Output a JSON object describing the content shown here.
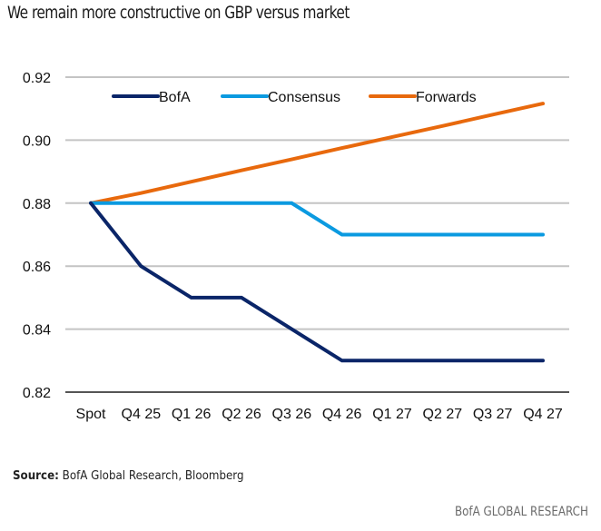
{
  "header": {
    "title": "We remain more constructive on GBP versus market"
  },
  "footer": {
    "source_label": "Source:",
    "source_text": " BofA Global Research, Bloomberg",
    "brand": "BofA GLOBAL RESEARCH"
  },
  "chart_data": {
    "type": "line",
    "title": "We remain more constructive on GBP versus market",
    "xlabel": "",
    "ylabel": "",
    "categories": [
      "Spot",
      "Q4 25",
      "Q1 26",
      "Q2 26",
      "Q3 26",
      "Q4 26",
      "Q1 27",
      "Q2 27",
      "Q3 27",
      "Q4 27"
    ],
    "ylim": [
      0.82,
      0.92
    ],
    "yticks": [
      0.82,
      0.84,
      0.86,
      0.88,
      0.9,
      0.92
    ],
    "ytick_labels": [
      "0.82",
      "0.84",
      "0.86",
      "0.88",
      "0.90",
      "0.92"
    ],
    "grid": true,
    "legend_position": "top",
    "series": [
      {
        "name": "BofA",
        "color": "#0a2568",
        "values": [
          0.88,
          0.86,
          0.85,
          0.85,
          0.84,
          0.83,
          0.83,
          0.83,
          0.83,
          0.83
        ]
      },
      {
        "name": "Consensus",
        "color": "#0b9ae0",
        "values": [
          0.88,
          0.88,
          0.88,
          0.88,
          0.88,
          0.87,
          0.87,
          0.87,
          0.87,
          0.87
        ]
      },
      {
        "name": "Forwards",
        "color": "#e8690d",
        "values": [
          0.88,
          0.8832,
          0.8868,
          0.8904,
          0.8939,
          0.8975,
          0.901,
          0.9045,
          0.9081,
          0.9116
        ]
      }
    ]
  }
}
